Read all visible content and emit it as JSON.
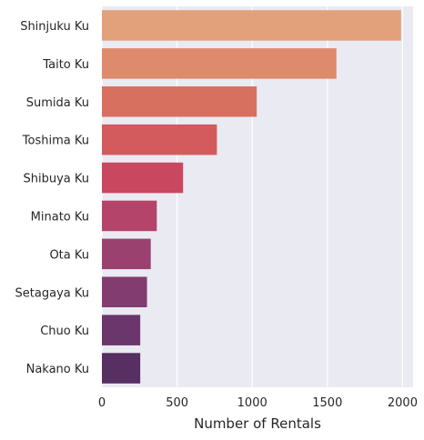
{
  "chart_data": {
    "type": "bar",
    "orientation": "horizontal",
    "title": "",
    "xlabel": "Number of Rentals",
    "ylabel": "",
    "xlim": [
      0,
      2070
    ],
    "xticks": [
      0,
      500,
      1000,
      1500,
      2000
    ],
    "xtick_labels": [
      "0",
      "500",
      "1000",
      "1500",
      "2000"
    ],
    "grid": true,
    "categories": [
      "Shinjuku Ku",
      "Taito Ku",
      "Sumida Ku",
      "Toshima Ku",
      "Shibuya Ku",
      "Minato Ku",
      "Ota Ku",
      "Setagaya Ku",
      "Chuo Ku",
      "Nakano Ku"
    ],
    "values": [
      1990,
      1560,
      1030,
      765,
      540,
      365,
      325,
      300,
      255,
      255
    ],
    "colors": [
      "#e3a17b",
      "#de8a6c",
      "#d8705f",
      "#d35a5d",
      "#c9475f",
      "#b4446a",
      "#9b416f",
      "#833c70",
      "#6b366c",
      "#572f63"
    ],
    "background": "#eaeaf2"
  }
}
